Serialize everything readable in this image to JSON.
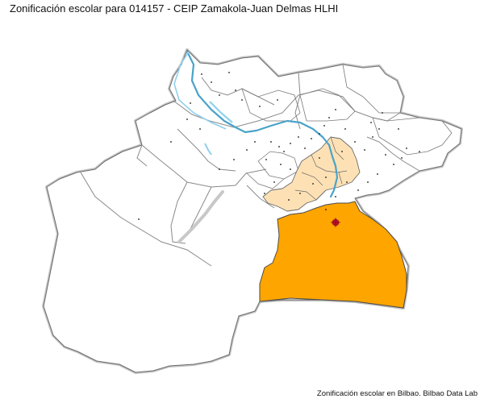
{
  "title": "Zonificación escolar para 014157 - CEIP Zamakola-Juan Delmas HLHI",
  "caption": "Zonificación escolar en Bilbao. Bilbao Data Lab",
  "colors": {
    "primary_zone": "#ffa500",
    "secondary_zone": "#fde1b5",
    "river": "#4aa3c9",
    "river_light": "#8fd0ee",
    "boundary_outer": "#9a9a9a",
    "boundary_inner": "#555555",
    "school_marker": "#c8102e",
    "highway": "#c8c8c8"
  },
  "legend_icons": {
    "school_marker": "school-location-icon"
  }
}
